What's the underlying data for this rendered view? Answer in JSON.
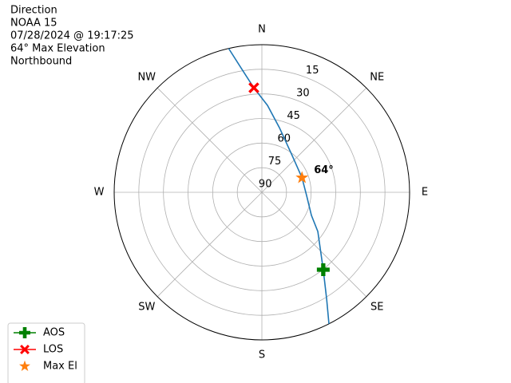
{
  "chart_data": {
    "type": "polar",
    "title_lines": [
      "Direction",
      "NOAA 15",
      "07/28/2024 @ 19:17:25",
      "64° Max Elevation",
      "Northbound"
    ],
    "xticks": [
      {
        "value": 0,
        "label": "N"
      },
      {
        "value": 45,
        "label": "NE"
      },
      {
        "value": 90,
        "label": "E"
      },
      {
        "value": 135,
        "label": "SE"
      },
      {
        "value": 180,
        "label": "S"
      },
      {
        "value": 225,
        "label": "SW"
      },
      {
        "value": 270,
        "label": "W"
      },
      {
        "value": 315,
        "label": "NW"
      }
    ],
    "ylim": [
      90,
      0
    ],
    "yticks": [
      15,
      30,
      45,
      60,
      75,
      90
    ],
    "grid": true,
    "legend": "lower left",
    "series": [
      {
        "color": "#1f77b4",
        "marker": "none",
        "x": [
          153,
          148.8,
          141.6,
          125,
          115,
          94,
          70,
          39.6,
          15.2,
          3.7,
          355.6,
          350.8,
          347
        ],
        "values": [
          0,
          13.8,
          29.8,
          48.4,
          56.7,
          62.7,
          64,
          61,
          49.2,
          36.9,
          26.1,
          14.1,
          0
        ]
      },
      {
        "name": "AOS",
        "color": "#008000",
        "marker": "plus",
        "x": [
          141.6
        ],
        "values": [
          29.8
        ]
      },
      {
        "name": "LOS",
        "color": "#ff0000",
        "marker": "x",
        "x": [
          355.6
        ],
        "values": [
          26.1
        ]
      },
      {
        "name": "Max El",
        "color": "#ff7f0e",
        "marker": "star",
        "x": [
          70
        ],
        "values": [
          64
        ],
        "value_labels": [
          "64°"
        ]
      }
    ]
  }
}
